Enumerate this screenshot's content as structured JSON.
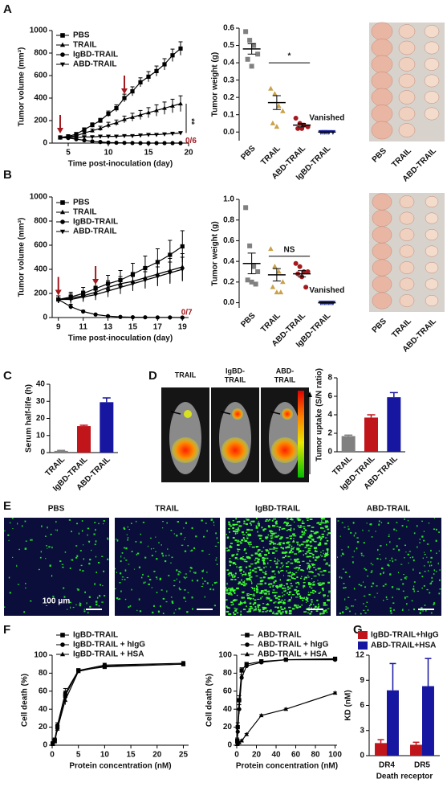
{
  "chart_data": [
    {
      "type": "line",
      "panel": "A",
      "xlabel": "Time post-inoculation (day)",
      "ylabel": "Tumor volume (mm³)",
      "xlim": [
        3,
        20
      ],
      "xticks": [
        5,
        10,
        15,
        20
      ],
      "ylim": [
        0,
        1000
      ],
      "yticks": [
        0,
        200,
        400,
        600,
        800,
        1000
      ],
      "x": [
        4,
        5,
        6,
        7,
        8,
        9,
        10,
        11,
        12,
        13,
        14,
        15,
        16,
        17,
        18,
        19
      ],
      "series": [
        {
          "name": "PBS",
          "marker": "square",
          "values": [
            50,
            60,
            80,
            120,
            160,
            200,
            260,
            310,
            400,
            460,
            540,
            590,
            640,
            700,
            780,
            840
          ],
          "errors": [
            5,
            8,
            10,
            15,
            20,
            20,
            25,
            30,
            35,
            40,
            40,
            45,
            45,
            50,
            55,
            60
          ]
        },
        {
          "name": "TRAIL",
          "marker": "triangle",
          "values": [
            50,
            55,
            65,
            90,
            110,
            130,
            160,
            180,
            210,
            230,
            250,
            270,
            290,
            310,
            330,
            350
          ],
          "errors": [
            5,
            5,
            8,
            10,
            15,
            20,
            25,
            25,
            30,
            35,
            40,
            45,
            50,
            55,
            60,
            70
          ]
        },
        {
          "name": "IgBD-TRAIL",
          "marker": "circle",
          "values": [
            50,
            45,
            35,
            25,
            15,
            10,
            5,
            3,
            2,
            1,
            0,
            0,
            0,
            0,
            0,
            0
          ],
          "errors": [
            5,
            5,
            5,
            4,
            3,
            2,
            2,
            1,
            1,
            1,
            0,
            0,
            0,
            0,
            0,
            0
          ]
        },
        {
          "name": "ABD-TRAIL",
          "marker": "triangle-down",
          "values": [
            50,
            50,
            50,
            55,
            55,
            60,
            60,
            60,
            65,
            65,
            70,
            75,
            75,
            80,
            85,
            90
          ],
          "errors": [
            5,
            5,
            5,
            6,
            6,
            7,
            7,
            8,
            8,
            9,
            9,
            10,
            10,
            10,
            12,
            12
          ]
        }
      ],
      "arrows": [
        4,
        12
      ],
      "arrow_color": "#a3191e",
      "annotations": [
        {
          "text": "0/6",
          "x": 19.6,
          "y": 20,
          "color": "#a3191e"
        },
        {
          "text": "**",
          "x": 19.7,
          "y": 220,
          "color": "#111"
        }
      ]
    },
    {
      "type": "dot",
      "ylabel": "Tumor weight (g)",
      "ylim": [
        -0.05,
        0.6
      ],
      "yticks": [
        {
          "value": 0,
          "label": "0.0"
        },
        0.1,
        0.2,
        0.3,
        0.4,
        0.5,
        0.6
      ],
      "groups": [
        {
          "name": "PBS",
          "color": "#808080",
          "marker": "square",
          "points": [
            0.58,
            0.53,
            0.5,
            0.45,
            0.42,
            0.38
          ],
          "mean": 0.48,
          "sem": 0.03
        },
        {
          "name": "TRAIL",
          "color": "#c9a24b",
          "marker": "triangle",
          "points": [
            0.25,
            0.22,
            0.15,
            0.12,
            0.05,
            0.03
          ],
          "mean": 0.17,
          "sem": 0.04
        },
        {
          "name": "ABD-TRAIL",
          "color": "#a3191e",
          "marker": "circle",
          "points": [
            0.08,
            0.05,
            0.04,
            0.03,
            0.02,
            0.02
          ],
          "mean": 0.04,
          "sem": 0.01
        },
        {
          "name": "IgBD-TRAIL",
          "color": "#1f2a9b",
          "marker": "triangle-down",
          "points": [
            0,
            0,
            0,
            0,
            0,
            0
          ],
          "mean": 0,
          "sem": 0
        }
      ],
      "significance": {
        "label": "*",
        "y": 0.4,
        "span": [
          "TRAIL",
          "ABD-TRAIL"
        ]
      },
      "annotation": {
        "text": "Vanished",
        "y": 0.08,
        "at": "IgBD-TRAIL"
      }
    },
    {
      "type": "line",
      "panel": "B",
      "xlabel": "Time post-inoculation (day)",
      "ylabel": "Tumor volume (mm³)",
      "xlim": [
        8.5,
        19.5
      ],
      "xticks": [
        9,
        11,
        13,
        15,
        17,
        19
      ],
      "ylim": [
        0,
        1000
      ],
      "yticks": [
        0,
        200,
        400,
        600,
        800,
        1000
      ],
      "x": [
        9,
        10,
        11,
        12,
        13,
        14,
        15,
        16,
        17,
        18,
        19
      ],
      "series": [
        {
          "name": "PBS",
          "marker": "square",
          "values": [
            150,
            170,
            200,
            240,
            280,
            310,
            360,
            410,
            460,
            520,
            590
          ],
          "errors": [
            30,
            40,
            50,
            60,
            70,
            80,
            90,
            100,
            110,
            120,
            130
          ]
        },
        {
          "name": "TRAIL",
          "marker": "triangle",
          "values": [
            150,
            160,
            180,
            210,
            250,
            280,
            300,
            330,
            360,
            390,
            420
          ],
          "errors": [
            30,
            35,
            40,
            50,
            55,
            60,
            70,
            80,
            90,
            100,
            110
          ]
        },
        {
          "name": "IgBD-TRAIL",
          "marker": "circle",
          "values": [
            150,
            90,
            50,
            25,
            12,
            5,
            3,
            2,
            1,
            1,
            0
          ],
          "errors": [
            30,
            20,
            10,
            5,
            3,
            2,
            1,
            1,
            0,
            0,
            0
          ]
        },
        {
          "name": "ABD-TRAIL",
          "marker": "triangle-down",
          "values": [
            150,
            150,
            170,
            190,
            220,
            250,
            280,
            310,
            340,
            370,
            400
          ],
          "errors": [
            30,
            35,
            40,
            45,
            50,
            55,
            60,
            70,
            80,
            90,
            100
          ]
        }
      ],
      "arrows": [
        9,
        12
      ],
      "arrow_color": "#a3191e",
      "annotations": [
        {
          "text": "0/7",
          "x": 18.9,
          "y": 40,
          "color": "#a3191e"
        }
      ]
    },
    {
      "type": "dot",
      "ylabel": "Tumor weight (g)",
      "ylim": [
        -0.05,
        1.0
      ],
      "yticks": [
        {
          "value": 0,
          "label": "0.0"
        },
        0.2,
        0.4,
        0.6,
        0.8,
        {
          "value": 1,
          "label": "1.0"
        }
      ],
      "groups": [
        {
          "name": "PBS",
          "color": "#808080",
          "marker": "square",
          "points": [
            0.92,
            0.55,
            0.35,
            0.3,
            0.22,
            0.2,
            0.18
          ],
          "mean": 0.38,
          "sem": 0.1
        },
        {
          "name": "TRAIL",
          "color": "#c9a24b",
          "marker": "triangle",
          "points": [
            0.52,
            0.35,
            0.3,
            0.2,
            0.15,
            0.1,
            0.1
          ],
          "mean": 0.27,
          "sem": 0.06
        },
        {
          "name": "ABD-TRAIL",
          "color": "#a3191e",
          "marker": "circle",
          "points": [
            0.38,
            0.35,
            0.3,
            0.3,
            0.28,
            0.25,
            0.15
          ],
          "mean": 0.28,
          "sem": 0.03
        },
        {
          "name": "IgBD-TRAIL",
          "color": "#1f2a9b",
          "marker": "triangle-down",
          "points": [
            0,
            0,
            0,
            0,
            0,
            0,
            0
          ],
          "mean": 0,
          "sem": 0
        }
      ],
      "significance": {
        "label": "NS",
        "y": 0.45,
        "span": [
          "TRAIL",
          "ABD-TRAIL"
        ]
      },
      "annotation": {
        "text": "Vanished",
        "y": 0.12,
        "at": "IgBD-TRAIL"
      }
    },
    {
      "type": "bar",
      "panel": "C",
      "ylabel": "Serum half-life (h)",
      "ylim": [
        0,
        40
      ],
      "yticks": [
        0,
        10,
        20,
        30,
        40
      ],
      "categories": [
        "TRAIL",
        "IgBD-TRAIL",
        "ABD-TRAIL"
      ],
      "values": [
        1,
        15.5,
        29.5
      ],
      "errors": [
        0.3,
        0.5,
        2.5
      ],
      "colors": [
        "#808080",
        "#c0151b",
        "#1616a0"
      ]
    },
    {
      "type": "bar",
      "ylabel": "Tumor uptake (S/N ratio)",
      "ylim": [
        0,
        8
      ],
      "yticks": [
        0,
        2,
        4,
        6,
        8
      ],
      "categories": [
        "TRAIL",
        "IgBD-TRAIL",
        "ABD-TRAIL"
      ],
      "values": [
        1.7,
        3.7,
        5.9
      ],
      "errors": [
        0.1,
        0.3,
        0.5
      ],
      "colors": [
        "#808080",
        "#c0151b",
        "#1616a0"
      ]
    },
    {
      "type": "line",
      "panel": "F",
      "xlabel": "Protein concentration (nM)",
      "ylabel": "Cell death (%)",
      "xlim": [
        0,
        26
      ],
      "xticks": [
        0,
        5,
        10,
        15,
        20,
        25
      ],
      "ylim": [
        0,
        100
      ],
      "yticks": [
        0,
        20,
        40,
        60,
        80,
        100
      ],
      "x": [
        0.1,
        0.5,
        1,
        2.5,
        5,
        10,
        25
      ],
      "series": [
        {
          "name": "IgBD-TRAIL",
          "marker": "square",
          "values": [
            2,
            5,
            20,
            55,
            83,
            87,
            90
          ],
          "errors": [
            1,
            2,
            3,
            5,
            2,
            2,
            2
          ]
        },
        {
          "name": "IgBD-TRAIL + hIgG",
          "marker": "circle",
          "values": [
            2,
            6,
            22,
            58,
            83,
            89,
            91
          ],
          "errors": [
            1,
            2,
            3,
            5,
            2,
            2,
            2
          ]
        },
        {
          "name": "IgBD-TRAIL + HSA",
          "marker": "triangle",
          "values": [
            1,
            4,
            18,
            50,
            82,
            88,
            90
          ],
          "errors": [
            1,
            2,
            3,
            5,
            2,
            2,
            2
          ]
        }
      ]
    },
    {
      "type": "line",
      "xlabel": "Protein concentration (nM)",
      "ylabel": "Cell death (%)",
      "xlim": [
        0,
        102
      ],
      "xticks": [
        0,
        20,
        40,
        60,
        80,
        100
      ],
      "ylim": [
        0,
        100
      ],
      "yticks": [
        0,
        20,
        40,
        60,
        80,
        100
      ],
      "x": [
        0.5,
        1,
        2.5,
        5,
        10,
        25,
        50,
        100
      ],
      "series": [
        {
          "name": "ABD-TRAIL",
          "marker": "square",
          "values": [
            5,
            20,
            50,
            83,
            90,
            93,
            95,
            96
          ],
          "errors": [
            3,
            5,
            5,
            3,
            2,
            2,
            1,
            1
          ]
        },
        {
          "name": "ABD-TRAIL + hIgG",
          "marker": "circle",
          "values": [
            3,
            15,
            40,
            75,
            88,
            92,
            95,
            95
          ],
          "errors": [
            3,
            5,
            5,
            3,
            2,
            2,
            1,
            1
          ]
        },
        {
          "name": "ABD-TRAIL + HSA",
          "marker": "triangle",
          "values": [
            1,
            2,
            3,
            5,
            12,
            33,
            40,
            58
          ],
          "errors": [
            1,
            1,
            1,
            1,
            1,
            1,
            1,
            1
          ]
        }
      ]
    },
    {
      "type": "groupedbar",
      "panel": "G",
      "xlabel": "Death receptor",
      "ylabel": "KD (nM)",
      "ylim": [
        0,
        12
      ],
      "yticks": [
        0,
        3,
        6,
        9,
        12
      ],
      "categories": [
        "DR4",
        "DR5"
      ],
      "series": [
        {
          "name": "IgBD-TRAIL+hIgG",
          "color": "#c0151b",
          "values": [
            1.5,
            1.3
          ],
          "errors": [
            0.4,
            0.3
          ]
        },
        {
          "name": "ABD-TRAIL+HSA",
          "color": "#1616a0",
          "values": [
            7.8,
            8.3
          ],
          "errors": [
            3.2,
            3.3
          ]
        }
      ]
    }
  ],
  "photos": [
    {
      "labels": [
        "PBS",
        "TRAIL",
        "ABD-TRAIL"
      ]
    },
    {
      "labels": [
        "PBS",
        "TRAIL",
        "ABD-TRAIL"
      ]
    }
  ],
  "imaging": {
    "panel": "D",
    "labels": [
      [
        "TRAIL"
      ],
      [
        "IgBD-",
        "TRAIL"
      ],
      [
        "ABD-",
        "TRAIL"
      ]
    ]
  },
  "micrographs": {
    "panel": "E",
    "labels": [
      "PBS",
      "TRAIL",
      "IgBD-TRAIL",
      "ABD-TRAIL"
    ],
    "scale": "100 μm"
  }
}
